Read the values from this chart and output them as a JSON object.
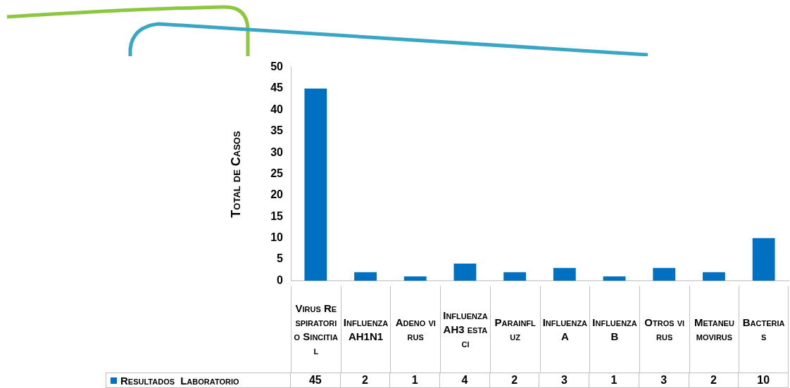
{
  "chart_data": {
    "type": "bar",
    "ylabel": "Total de Casos",
    "categories": [
      "Virus Respiratorio Sincitial",
      "Influenza AH1N1",
      "Adeno virus",
      "Influenza AH3 estaci",
      "Parainfluz",
      "Influenza A",
      "Influenza B",
      "Otros virus",
      "Metaneumovirus",
      "Bacterias"
    ],
    "series": [
      {
        "name": "Resultados Laboratorio",
        "color": "#0070c0",
        "values": [
          45,
          2,
          1,
          4,
          2,
          3,
          1,
          3,
          2,
          10
        ]
      }
    ],
    "ylim": [
      0,
      50
    ],
    "yticks": [
      0,
      5,
      10,
      15,
      20,
      25,
      30,
      35,
      40,
      45,
      50
    ],
    "grid": false,
    "legend": "bottom",
    "data_labels": true
  }
}
